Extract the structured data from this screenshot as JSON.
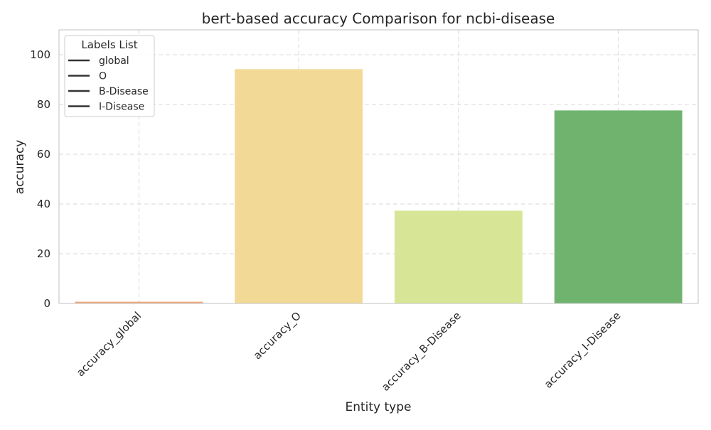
{
  "chart_data": {
    "type": "bar",
    "title": "bert-based accuracy Comparison for ncbi-disease",
    "xlabel": "Entity type",
    "ylabel": "accuracy",
    "categories": [
      "accuracy_global",
      "accuracy_O",
      "accuracy_B-Disease",
      "accuracy_I-Disease"
    ],
    "values": [
      0.7,
      94.2,
      37.3,
      77.6
    ],
    "colors": [
      "#f0a57a",
      "#f2da96",
      "#d6e696",
      "#70b36e"
    ],
    "ylim": [
      0,
      110
    ],
    "yticks": [
      0,
      20,
      40,
      60,
      80,
      100
    ],
    "grid": true,
    "legend": {
      "title": "Labels List",
      "entries": [
        "global",
        "O",
        "B-Disease",
        "I-Disease"
      ],
      "placement": "upper-left"
    }
  }
}
